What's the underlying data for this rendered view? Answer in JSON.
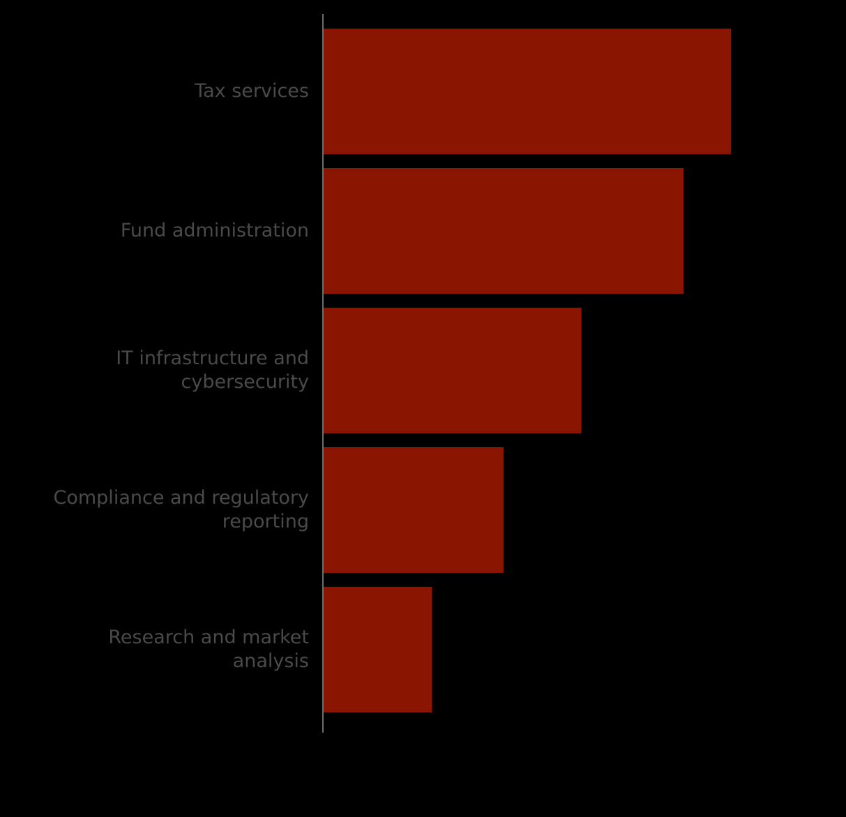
{
  "chart_data": {
    "type": "bar",
    "orientation": "horizontal",
    "categories": [
      "Tax services",
      "Fund administration",
      "IT infrastructure and cybersecurity",
      "Compliance and regulatory reporting",
      "Research and market analysis"
    ],
    "category_label_lines": [
      [
        "Tax services"
      ],
      [
        "Fund administration"
      ],
      [
        "IT infrastructure and",
        "cybersecurity"
      ],
      [
        "Compliance and regulatory",
        "reporting"
      ],
      [
        "Research and market",
        "analysis"
      ]
    ],
    "values": [
      100,
      88.4,
      63.3,
      44.2,
      26.6
    ],
    "xlim": [
      0,
      100
    ],
    "grid": false,
    "legend": "none",
    "title": "",
    "xlabel": "",
    "ylabel": "",
    "colors": {
      "background": "#000000",
      "bar": "#8a1602",
      "axis": "#6e6e6e",
      "label": "#4a4a4a"
    }
  }
}
